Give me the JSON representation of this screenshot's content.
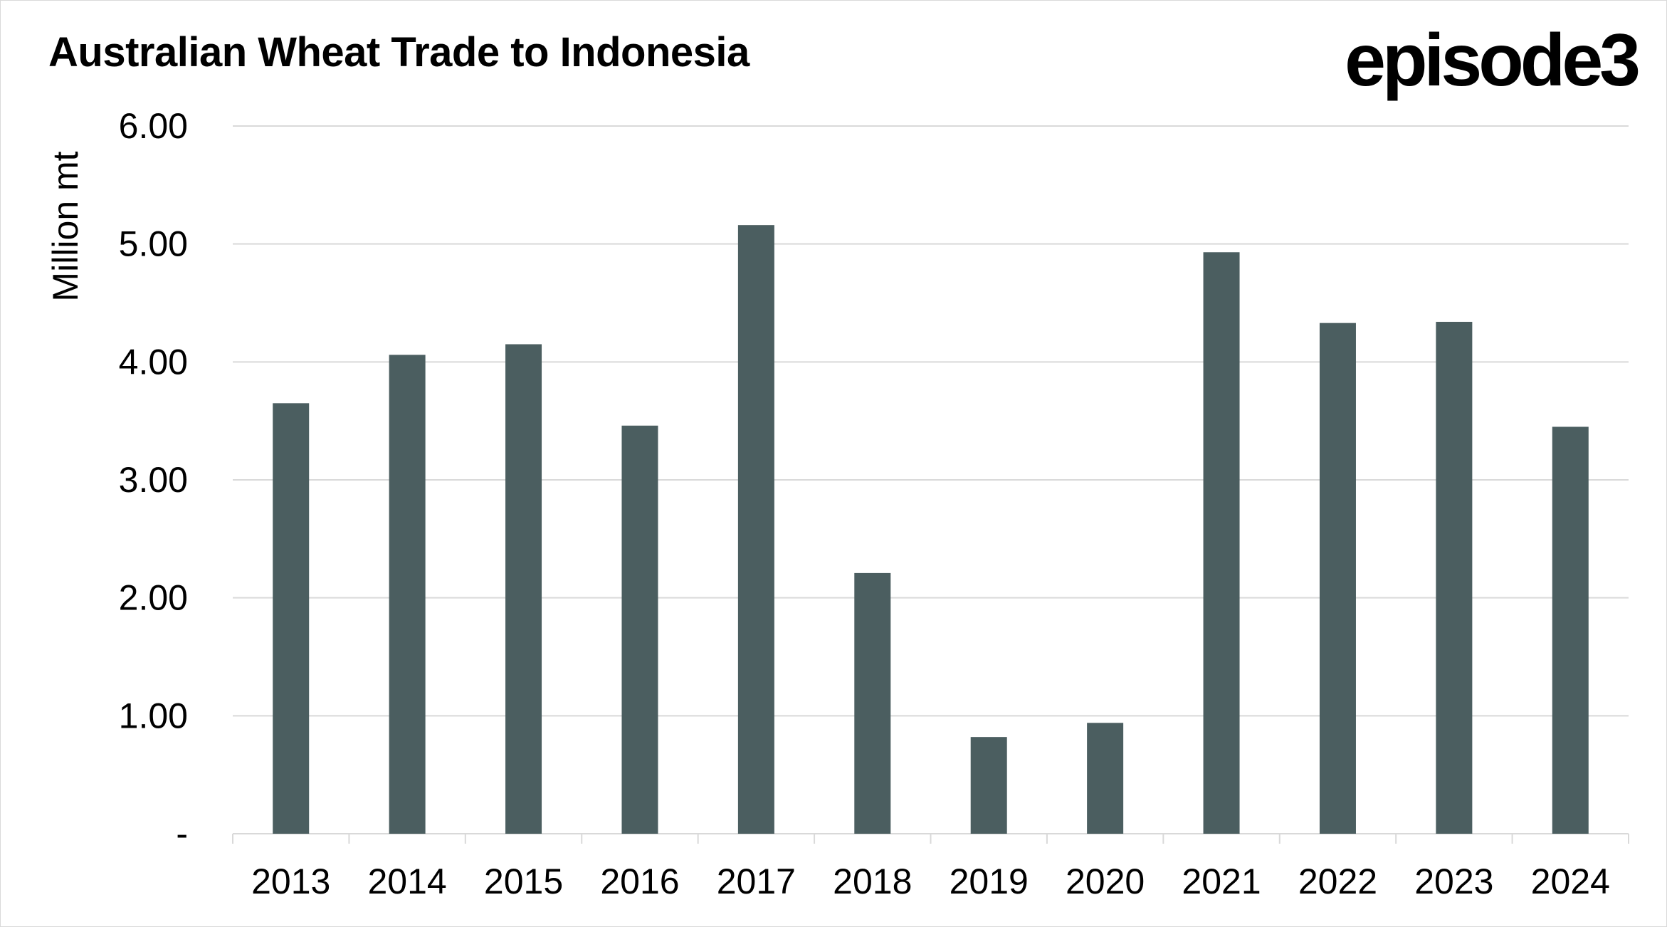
{
  "header": {
    "title": "Australian Wheat Trade to Indonesia",
    "brand": "episode3"
  },
  "colors": {
    "bar": "#4b5e60",
    "grid": "#d9d9d9",
    "axis": "#d9d9d9",
    "text": "#000000",
    "background": "#ffffff"
  },
  "chart_data": {
    "type": "bar",
    "title": "Australian Wheat Trade to Indonesia",
    "xlabel": "",
    "ylabel": "Million mt",
    "categories": [
      "2013",
      "2014",
      "2015",
      "2016",
      "2017",
      "2018",
      "2019",
      "2020",
      "2021",
      "2022",
      "2023",
      "2024"
    ],
    "values": [
      3.65,
      4.06,
      4.15,
      3.46,
      5.16,
      2.21,
      0.82,
      0.94,
      4.93,
      4.33,
      4.34,
      3.45
    ],
    "ylim": [
      0,
      6
    ],
    "yticks": [
      0,
      1,
      2,
      3,
      4,
      5,
      6
    ],
    "ytick_labels": [
      "-",
      "1.00",
      "2.00",
      "3.00",
      "4.00",
      "5.00",
      "6.00"
    ],
    "grid": true,
    "legend": "none"
  }
}
